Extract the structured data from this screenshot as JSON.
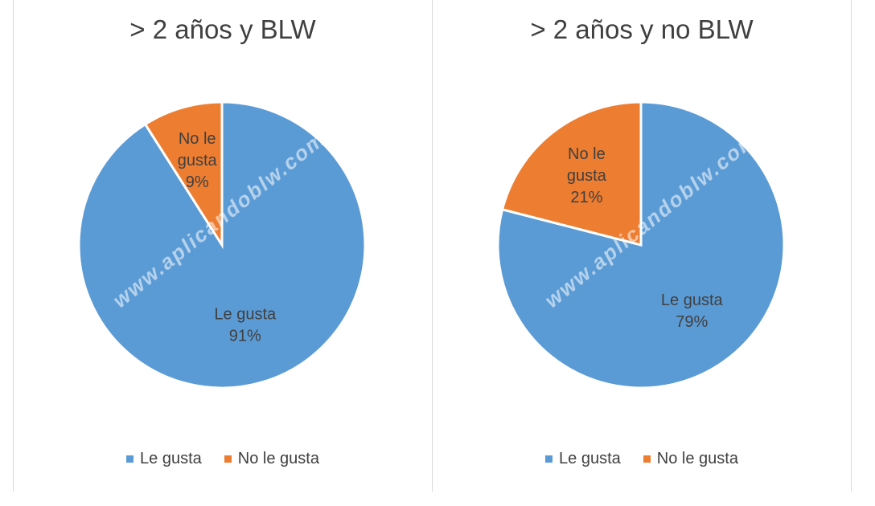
{
  "watermark": "www.aplicandoblw.com",
  "chart_data": [
    {
      "type": "pie",
      "title": "> 2 años y BLW",
      "slices": [
        {
          "label": "Le gusta",
          "value": 91,
          "display": "91%",
          "color": "#5b9bd5"
        },
        {
          "label": "No le gusta",
          "value": 9,
          "display": "9%",
          "color": "#ed7d31"
        }
      ],
      "legend": [
        "Le gusta",
        "No le gusta"
      ],
      "legend_position": "bottom"
    },
    {
      "type": "pie",
      "title": "> 2 años y no BLW",
      "slices": [
        {
          "label": "Le gusta",
          "value": 79,
          "display": "79%",
          "color": "#5b9bd5"
        },
        {
          "label": "No le gusta",
          "value": 21,
          "display": "21%",
          "color": "#ed7d31"
        }
      ],
      "legend": [
        "Le gusta",
        "No le gusta"
      ],
      "legend_position": "bottom"
    }
  ]
}
